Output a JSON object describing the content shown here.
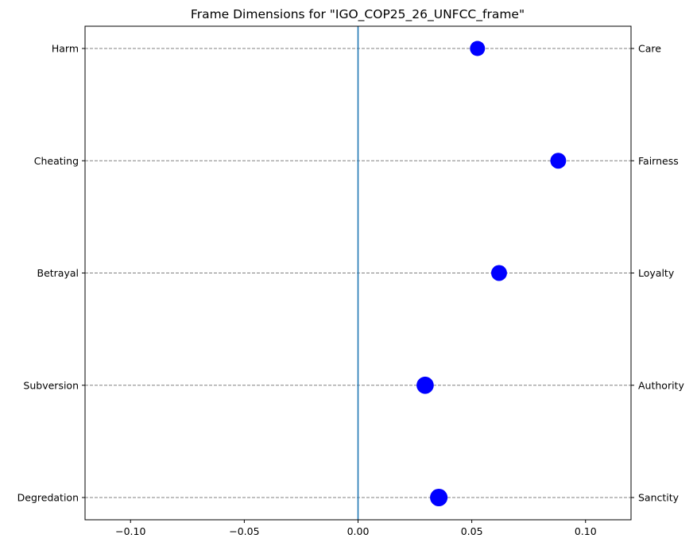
{
  "chart_data": {
    "type": "scatter",
    "title": "Frame Dimensions for \"IGO_COP25_26_UNFCC_frame\"",
    "xlabel": "",
    "ylabel": "",
    "xlim": [
      -0.12,
      0.12
    ],
    "x_ticks": [
      -0.1,
      -0.05,
      0.0,
      0.05,
      0.1
    ],
    "x_tick_labels": [
      "−0.10",
      "−0.05",
      "0.00",
      "0.05",
      "0.10"
    ],
    "left_labels": [
      "Harm",
      "Cheating",
      "Betrayal",
      "Subversion",
      "Degredation"
    ],
    "right_labels": [
      "Care",
      "Fairness",
      "Loyalty",
      "Authority",
      "Sanctity"
    ],
    "points": [
      {
        "left": "Harm",
        "right": "Care",
        "x": 0.0525,
        "size": 1.0
      },
      {
        "left": "Cheating",
        "right": "Fairness",
        "x": 0.088,
        "size": 1.1
      },
      {
        "left": "Betrayal",
        "right": "Loyalty",
        "x": 0.062,
        "size": 1.1
      },
      {
        "left": "Subversion",
        "right": "Authority",
        "x": 0.0295,
        "size": 1.3
      },
      {
        "left": "Degredation",
        "right": "Sanctity",
        "x": 0.0355,
        "size": 1.35
      }
    ],
    "zero_line_x": 0.0,
    "grid": "horizontal dashed",
    "colors": {
      "point": "#0000ff",
      "zero_line": "#1f77b4",
      "grid": "#808080"
    }
  }
}
